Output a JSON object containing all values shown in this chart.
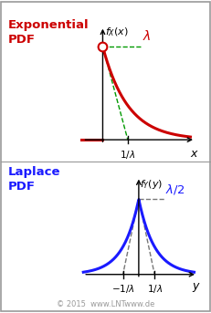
{
  "bg_color": "#ffffff",
  "border_color": "#999999",
  "top_label_text": "Exponential\nPDF",
  "top_label_color": "#cc0000",
  "bottom_label_text": "Laplace\nPDF",
  "bottom_label_color": "#1a1aff",
  "exp_color": "#cc0000",
  "lap_color": "#1a1aff",
  "dashed_color_exp": "#009900",
  "dashed_color_lap": "#777777",
  "copyright": "© 2015  www.LNTwww.de"
}
